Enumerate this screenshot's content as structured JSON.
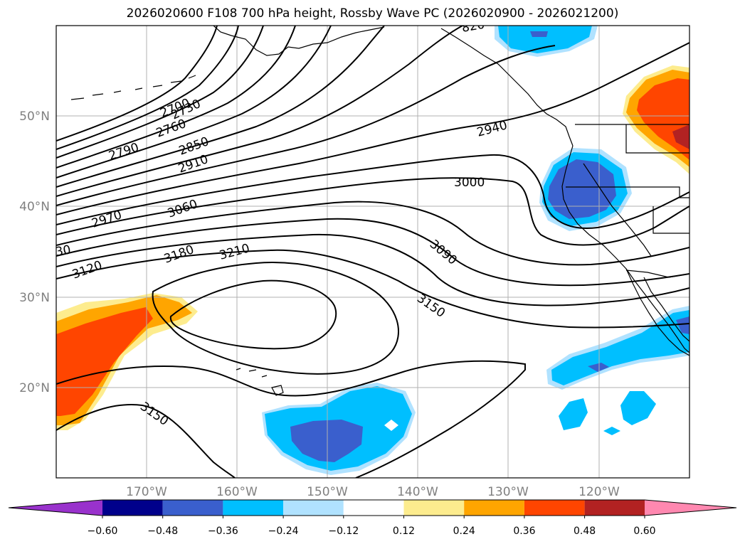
{
  "title": "2026020600 F108 700 hPa height, Rossby Wave PC (2026020900 - 2026021200)",
  "map": {
    "lat_labels": [
      "50°N",
      "40°N",
      "30°N",
      "20°N"
    ],
    "lon_labels": [
      "170°W",
      "160°W",
      "150°W",
      "140°W",
      "130°W",
      "120°W"
    ],
    "contour_labels": [
      "2700",
      "2730",
      "2760",
      "2790",
      "2850",
      "2910",
      "2940",
      "2970",
      "3000",
      "3060",
      "3090",
      "3120",
      "3150",
      "3150",
      "3180",
      "3210",
      "30",
      "820"
    ]
  },
  "colorbar": {
    "ticks": [
      "−0.60",
      "−0.48",
      "−0.36",
      "−0.24",
      "−0.12",
      "0.12",
      "0.24",
      "0.36",
      "0.48",
      "0.60"
    ],
    "colors": [
      "#9932cc",
      "#00008b",
      "#3a5fcd",
      "#00bfff",
      "#b0e2ff",
      "#ffffff",
      "#fdec8e",
      "#ffa500",
      "#ff4500",
      "#b22222",
      "#ff88b0"
    ]
  }
}
